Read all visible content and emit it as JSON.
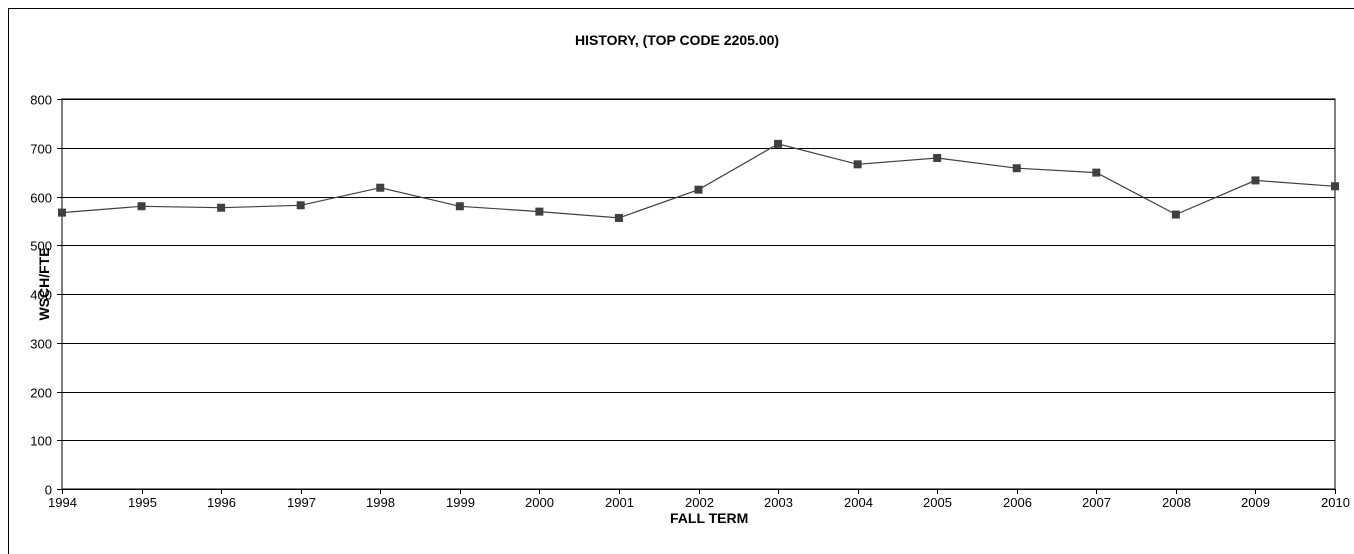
{
  "chart_data": {
    "type": "line",
    "title": "HISTORY, (TOP CODE 2205.00)",
    "xlabel": "FALL TERM",
    "ylabel": "WSCH/FTE",
    "ylim": [
      0,
      800
    ],
    "yticks": [
      0,
      100,
      200,
      300,
      400,
      500,
      600,
      700,
      800
    ],
    "grid": true,
    "categories": [
      "1994",
      "1995",
      "1996",
      "1997",
      "1998",
      "1999",
      "2000",
      "2001",
      "2002",
      "2003",
      "2004",
      "2005",
      "2006",
      "2007",
      "2008",
      "2009",
      "2010"
    ],
    "series": [
      {
        "values": [
          567,
          580,
          577,
          582,
          618,
          580,
          569,
          556,
          614,
          708,
          666,
          679,
          658,
          649,
          563,
          633,
          621
        ]
      }
    ],
    "colors": {
      "line": "#404040",
      "marker": "#404040",
      "grid": "#000000"
    }
  }
}
